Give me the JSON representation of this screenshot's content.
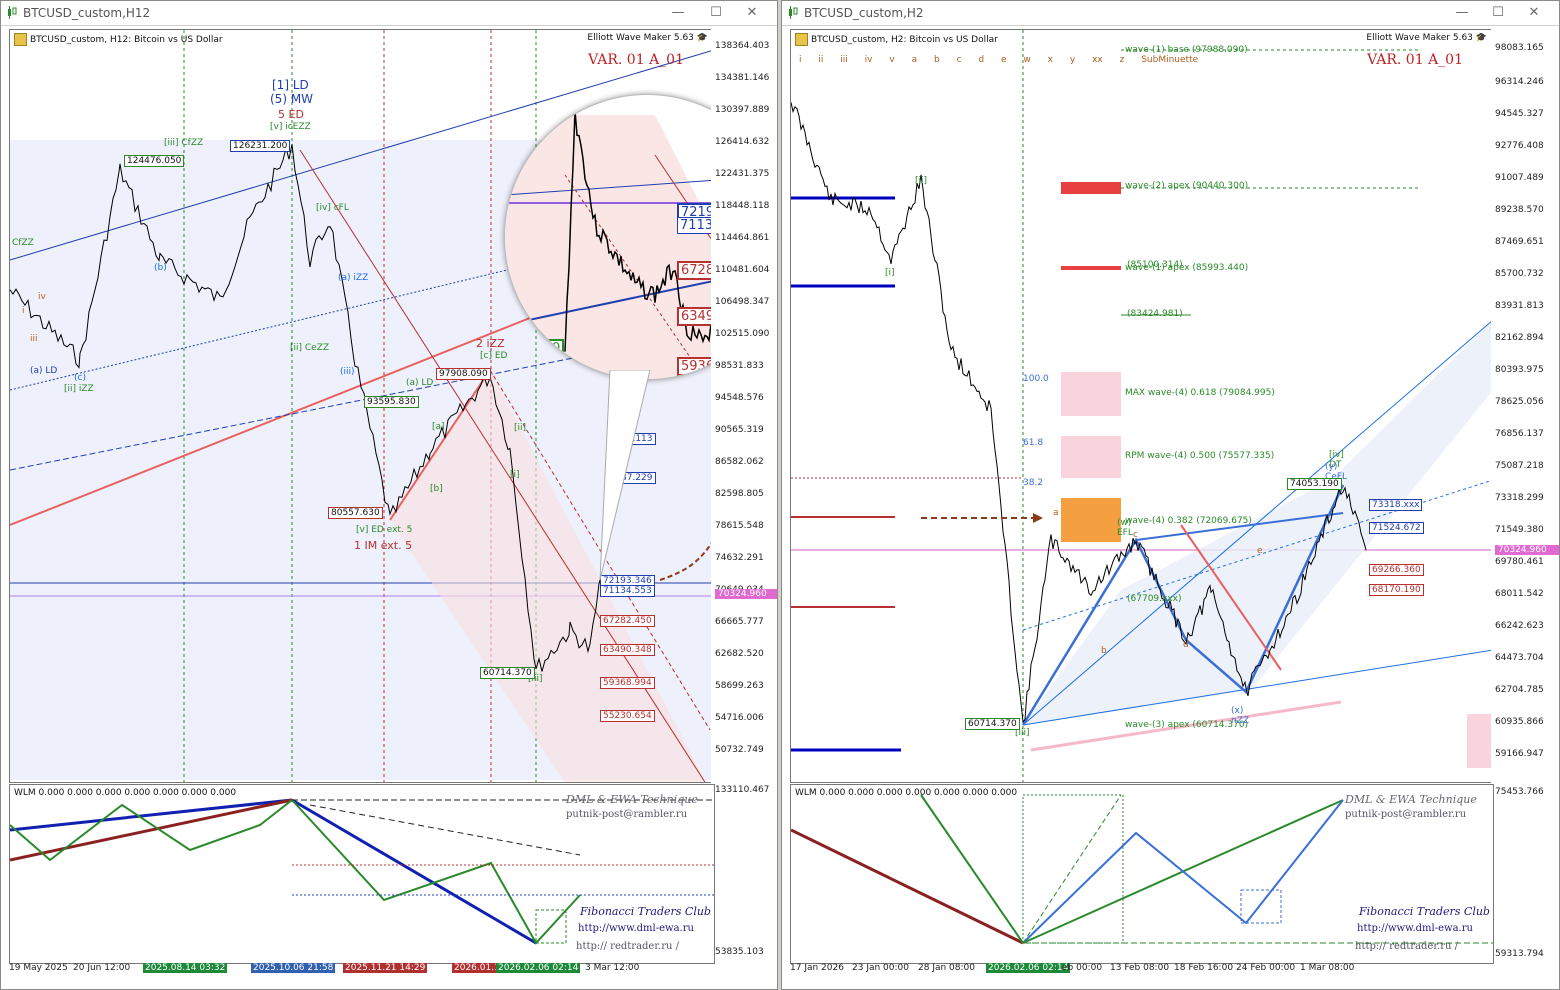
{
  "left": {
    "title": "BTCUSD_custom,H12",
    "symbol_label": "BTCUSD_custom, H12:  Bitcoin vs US Dollar",
    "ewm_label": "Elliott Wave Maker 5.63",
    "variant": "VAR. 01 A_01",
    "indicator_label": "WLM 0.000 0.000 0.000 0.000 0.000 0.000 0.000",
    "brand": "DML & EWA Technique",
    "email": "putnik-post@rambler.ru",
    "fib_label": "Fibonacci    Traders    Club",
    "url1": "http://www.dml-ewa.ru",
    "url2": "http:// redtrader.ru /",
    "price_scale": [
      "138364.403",
      "134381.146",
      "130397.889",
      "126414.632",
      "122431.375",
      "118448.118",
      "114464.861",
      "110481.604",
      "106498.347",
      "102515.090",
      "98531.833",
      "94548.576",
      "90565.319",
      "86582.062",
      "82598.805",
      "78615.548",
      "74632.291",
      "70649.034",
      "66665.777",
      "62682.520",
      "58699.263",
      "54716.006",
      "50732.749",
      "133110.467",
      "53835.103"
    ],
    "current_price": "70324.960",
    "time_scale": [
      "19 May 2025",
      "20 Jun 12:00",
      "2025.08.14 03:32",
      "2025.10.06 21:58",
      "2025.11.21 14:29",
      "2026.01.1",
      "2026.02.06 02:14",
      "3 Mar 12:00"
    ],
    "wave_labels": [
      "[1] LD",
      "(5) MW",
      "5 ED",
      "[v] icEZZ",
      "[iii] CfZZ",
      "(a) LD",
      "[ii] iZZ",
      "[iv] cFL",
      "(a) iZZ",
      "(iii)",
      "[ii] CeZZ",
      "(a) LD",
      "[v] ED ext. 5",
      "1 IM ext. 5",
      "2 iZZ",
      "[c] ED",
      "[i]",
      "[ii]",
      "[iii]",
      "(b)",
      "(c)",
      "[a]",
      "[b]",
      "CfZZ",
      "iv",
      "iii",
      "i"
    ],
    "price_tags": [
      "124476.050",
      "126231.200",
      "97908.090",
      "93595.830",
      "80557.630",
      "60714.370",
      "72193.346",
      "71134.553",
      "67282.450",
      "63490.348",
      "59368.994",
      "55230.654",
      "97.113",
      "87.229"
    ],
    "magnifier_tags": [
      "72193.346",
      "71134.553",
      "67282.450",
      "63490.348",
      "59368.994",
      "1.370"
    ]
  },
  "right": {
    "title": "BTCUSD_custom,H2",
    "symbol_label": "BTCUSD_custom, H2:  Bitcoin vs US Dollar",
    "ewm_label": "Elliott Wave Maker 5.63",
    "variant": "VAR. 01 A_01",
    "indicator_label": "WLM 0.000 0.000 0.000 0.000 0.000 0.000 0.000",
    "brand": "DML & EWA Technique",
    "email": "putnik-post@rambler.ru",
    "fib_label": "Fibonacci    Traders    Club",
    "url1": "http://www.dml-ewa.ru",
    "url2": "http:// redtrader.ru /",
    "degree_row": [
      "i",
      "ii",
      "iii",
      "iv",
      "v",
      "a",
      "b",
      "c",
      "d",
      "e",
      "w",
      "x",
      "y",
      "xx",
      "z",
      "SubMinuette"
    ],
    "price_scale": [
      "98083.165",
      "96314.246",
      "94545.327",
      "92776.408",
      "91007.489",
      "89238.570",
      "87469.651",
      "85700.732",
      "83931.813",
      "82162.894",
      "80393.975",
      "78625.056",
      "76856.137",
      "75087.218",
      "73318.299",
      "71549.380",
      "69780.461",
      "68011.542",
      "66242.623",
      "64473.704",
      "62704.785",
      "60935.866",
      "59166.947",
      "75453.766",
      "59313.794"
    ],
    "current_price": "70324.960",
    "time_scale": [
      "17 Jan 2026",
      "23 Jan 00:00",
      "28 Jan 08:00",
      "2026.02.06 02:14",
      "eb 00:00",
      "13 Feb 08:00",
      "18 Feb 16:00",
      "24 Feb 00:00",
      "1 Mar 08:00"
    ],
    "levels": [
      "wave-(1) base (97988.090)",
      "wave-(2) apex (90440.300)",
      "(85100.314)",
      "wave-(1) apex (85993.440)",
      "(83424.981)",
      "MAX wave-(4) 0.618 (79084.995)",
      "RPM wave-(4) 0.500 (75577.335)",
      "wave-(4) 0.382 (72069.675)",
      "(67709.xxx)",
      "wave-(3) apex (60714.370)"
    ],
    "fib_marks": [
      "100.0",
      "61.8",
      "38.2"
    ],
    "wave_labels": [
      "[ii]",
      "[i]",
      "[iii]",
      "[iv] DT",
      "(y) CeFL",
      "(x) nZZ",
      "(w) EFL",
      "a",
      "b",
      "c",
      "d",
      "e"
    ],
    "price_tags": [
      "74053.190",
      "73318.xxx",
      "71524.672",
      "69266.360",
      "68170.190",
      "60714.370"
    ]
  },
  "colors": {
    "bull": "#1f6fe0",
    "bear": "#b83030",
    "green": "#2a8a2a",
    "accent_magenta": "#e06ad0",
    "orange_zone": "#f4a040",
    "pink_zone": "#f7c8d0"
  }
}
